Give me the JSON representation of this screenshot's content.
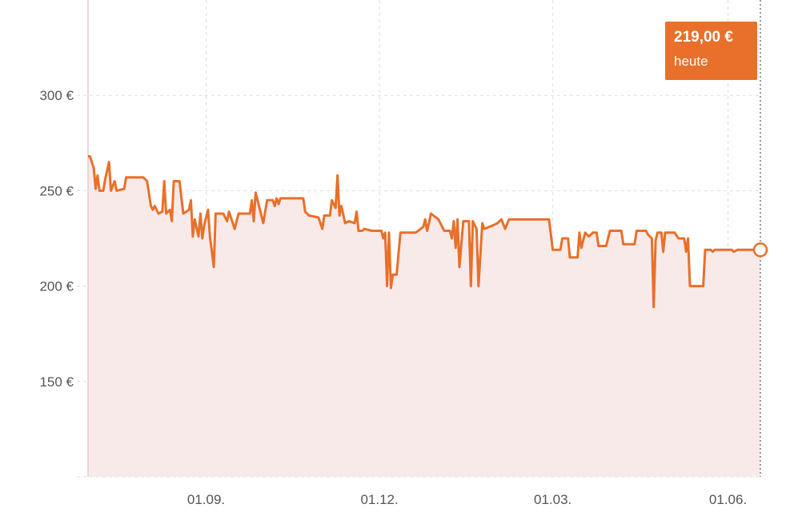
{
  "chart_data": {
    "type": "area",
    "currency_format": "€",
    "ylim": [
      100,
      350
    ],
    "y_ticks": [
      150,
      200,
      250,
      300
    ],
    "y_tick_labels": [
      "150 €",
      "200 €",
      "250 €",
      "300 €"
    ],
    "x_range": [
      "2023-07-01",
      "2024-06-18"
    ],
    "x_ticks": [
      "2023-09-01",
      "2023-12-01",
      "2024-03-01",
      "2024-06-01"
    ],
    "x_tick_labels": [
      "01.09.",
      "01.12.",
      "01.03.",
      "01.06."
    ],
    "grid": true,
    "colors": {
      "line": "#e8702a",
      "area": "#f9eaea",
      "grid": "#dddddd",
      "axis_left": "#e6c9d4"
    },
    "series": [
      {
        "values": [
          [
            "2023-07-01",
            268
          ],
          [
            "2023-07-02",
            268
          ],
          [
            "2023-07-04",
            262
          ],
          [
            "2023-07-05",
            251
          ],
          [
            "2023-07-06",
            258
          ],
          [
            "2023-07-07",
            250
          ],
          [
            "2023-07-09",
            250
          ],
          [
            "2023-07-10",
            256
          ],
          [
            "2023-07-12",
            265
          ],
          [
            "2023-07-13",
            250
          ],
          [
            "2023-07-15",
            255
          ],
          [
            "2023-07-16",
            250
          ],
          [
            "2023-07-20",
            251
          ],
          [
            "2023-07-21",
            257
          ],
          [
            "2023-07-30",
            257
          ],
          [
            "2023-08-01",
            255
          ],
          [
            "2023-08-03",
            242
          ],
          [
            "2023-08-04",
            240
          ],
          [
            "2023-08-05",
            242
          ],
          [
            "2023-08-07",
            238
          ],
          [
            "2023-08-09",
            239
          ],
          [
            "2023-08-10",
            255
          ],
          [
            "2023-08-11",
            238
          ],
          [
            "2023-08-13",
            240
          ],
          [
            "2023-08-14",
            234
          ],
          [
            "2023-08-15",
            255
          ],
          [
            "2023-08-18",
            255
          ],
          [
            "2023-08-20",
            238
          ],
          [
            "2023-08-23",
            240
          ],
          [
            "2023-08-24",
            245
          ],
          [
            "2023-08-25",
            226
          ],
          [
            "2023-08-26",
            235
          ],
          [
            "2023-08-28",
            226
          ],
          [
            "2023-08-29",
            238
          ],
          [
            "2023-08-30",
            225
          ],
          [
            "2023-08-31",
            232
          ],
          [
            "2023-09-02",
            240
          ],
          [
            "2023-09-03",
            226
          ],
          [
            "2023-09-05",
            210
          ],
          [
            "2023-09-06",
            238
          ],
          [
            "2023-09-10",
            238
          ],
          [
            "2023-09-12",
            234
          ],
          [
            "2023-09-13",
            239
          ],
          [
            "2023-09-16",
            230
          ],
          [
            "2023-09-18",
            238
          ],
          [
            "2023-09-24",
            238
          ],
          [
            "2023-09-25",
            245
          ],
          [
            "2023-09-26",
            234
          ],
          [
            "2023-09-27",
            249
          ],
          [
            "2023-09-28",
            245
          ],
          [
            "2023-10-01",
            233
          ],
          [
            "2023-10-03",
            245
          ],
          [
            "2023-10-06",
            245
          ],
          [
            "2023-10-07",
            242
          ],
          [
            "2023-10-08",
            246
          ],
          [
            "2023-10-09",
            243
          ],
          [
            "2023-10-10",
            246
          ],
          [
            "2023-10-22",
            246
          ],
          [
            "2023-10-23",
            239
          ],
          [
            "2023-10-25",
            237
          ],
          [
            "2023-10-30",
            236
          ],
          [
            "2023-11-01",
            230
          ],
          [
            "2023-11-02",
            237
          ],
          [
            "2023-11-05",
            237
          ],
          [
            "2023-11-06",
            245
          ],
          [
            "2023-11-08",
            241
          ],
          [
            "2023-11-09",
            258
          ],
          [
            "2023-11-10",
            237
          ],
          [
            "2023-11-11",
            242
          ],
          [
            "2023-11-13",
            233
          ],
          [
            "2023-11-15",
            234
          ],
          [
            "2023-11-18",
            233
          ],
          [
            "2023-11-19",
            239
          ],
          [
            "2023-11-20",
            229
          ],
          [
            "2023-11-22",
            229
          ],
          [
            "2023-11-23",
            230
          ],
          [
            "2023-11-27",
            229
          ],
          [
            "2023-12-02",
            229
          ],
          [
            "2023-12-03",
            225
          ],
          [
            "2023-12-04",
            228
          ],
          [
            "2023-12-05",
            200
          ],
          [
            "2023-12-06",
            228
          ],
          [
            "2023-12-07",
            199
          ],
          [
            "2023-12-08",
            206
          ],
          [
            "2023-12-10",
            206
          ],
          [
            "2023-12-12",
            228
          ],
          [
            "2023-12-20",
            228
          ],
          [
            "2023-12-24",
            231
          ],
          [
            "2023-12-25",
            235
          ],
          [
            "2023-12-26",
            229
          ],
          [
            "2023-12-27",
            233
          ],
          [
            "2023-12-28",
            238
          ],
          [
            "2024-01-01",
            235
          ],
          [
            "2024-01-04",
            229
          ],
          [
            "2024-01-07",
            229
          ],
          [
            "2024-01-08",
            225
          ],
          [
            "2024-01-09",
            234
          ],
          [
            "2024-01-10",
            220
          ],
          [
            "2024-01-11",
            235
          ],
          [
            "2024-01-12",
            210
          ],
          [
            "2024-01-14",
            234
          ],
          [
            "2024-01-17",
            234
          ],
          [
            "2024-01-18",
            200
          ],
          [
            "2024-01-19",
            234
          ],
          [
            "2024-01-21",
            230
          ],
          [
            "2024-01-22",
            200
          ],
          [
            "2024-01-24",
            233
          ],
          [
            "2024-01-25",
            230
          ],
          [
            "2024-01-30",
            232
          ],
          [
            "2024-02-01",
            233
          ],
          [
            "2024-02-03",
            235
          ],
          [
            "2024-02-05",
            230
          ],
          [
            "2024-02-07",
            235
          ],
          [
            "2024-02-28",
            235
          ],
          [
            "2024-03-01",
            219
          ],
          [
            "2024-03-05",
            219
          ],
          [
            "2024-03-06",
            225
          ],
          [
            "2024-03-09",
            225
          ],
          [
            "2024-03-10",
            215
          ],
          [
            "2024-03-14",
            215
          ],
          [
            "2024-03-15",
            228
          ],
          [
            "2024-03-16",
            220
          ],
          [
            "2024-03-18",
            228
          ],
          [
            "2024-03-20",
            226
          ],
          [
            "2024-03-22",
            228
          ],
          [
            "2024-03-24",
            228
          ],
          [
            "2024-03-25",
            221
          ],
          [
            "2024-03-29",
            221
          ],
          [
            "2024-03-31",
            229
          ],
          [
            "2024-04-06",
            229
          ],
          [
            "2024-04-07",
            222
          ],
          [
            "2024-04-13",
            222
          ],
          [
            "2024-04-14",
            229
          ],
          [
            "2024-04-19",
            229
          ],
          [
            "2024-04-20",
            227
          ],
          [
            "2024-04-22",
            225
          ],
          [
            "2024-04-23",
            189
          ],
          [
            "2024-04-24",
            224
          ],
          [
            "2024-04-25",
            228
          ],
          [
            "2024-04-27",
            228
          ],
          [
            "2024-04-28",
            218
          ],
          [
            "2024-04-29",
            228
          ],
          [
            "2024-05-04",
            228
          ],
          [
            "2024-05-06",
            225
          ],
          [
            "2024-05-09",
            225
          ],
          [
            "2024-05-10",
            218
          ],
          [
            "2024-05-11",
            225
          ],
          [
            "2024-05-12",
            200
          ],
          [
            "2024-05-19",
            200
          ],
          [
            "2024-05-20",
            219
          ],
          [
            "2024-05-23",
            219
          ],
          [
            "2024-05-24",
            218
          ],
          [
            "2024-05-25",
            219
          ],
          [
            "2024-06-03",
            219
          ],
          [
            "2024-06-04",
            218
          ],
          [
            "2024-06-06",
            219
          ],
          [
            "2024-06-18",
            219
          ]
        ]
      }
    ],
    "tooltip": {
      "price": "219,00 €",
      "label": "heute"
    }
  }
}
